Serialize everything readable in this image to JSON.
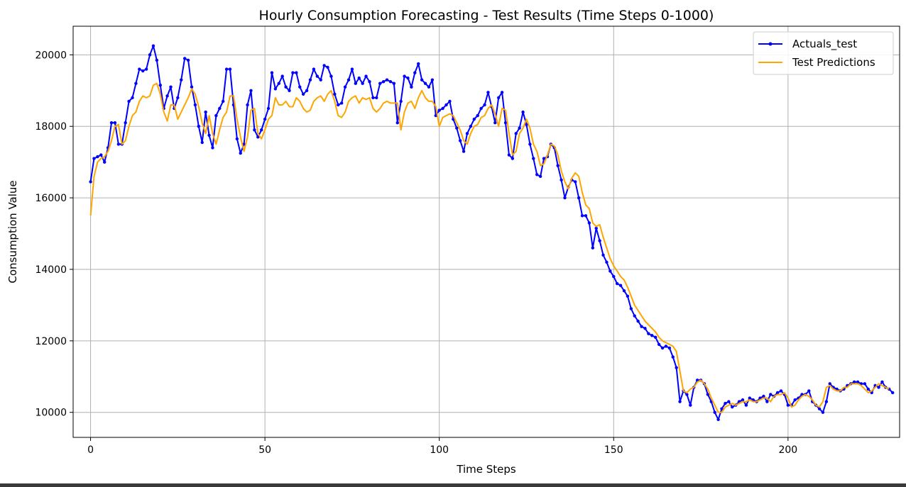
{
  "chart_data": {
    "type": "line",
    "title": "Hourly Consumption Forecasting - Test Results (Time Steps 0-1000)",
    "xlabel": "Time Steps",
    "ylabel": "Consumption Value",
    "xlim": [
      -5,
      232
    ],
    "ylim": [
      9300,
      20800
    ],
    "xticks": [
      0,
      50,
      100,
      150,
      200
    ],
    "yticks": [
      10000,
      12000,
      14000,
      16000,
      18000,
      20000
    ],
    "grid": true,
    "legend_position": "top-right",
    "series": [
      {
        "name": "Actuals_test",
        "color": "#0000ff",
        "marker": "dot",
        "values": [
          16450,
          17100,
          17150,
          17200,
          17000,
          17400,
          18100,
          18100,
          17500,
          17500,
          18100,
          18700,
          18800,
          19200,
          19600,
          19550,
          19600,
          20000,
          20250,
          19850,
          19150,
          18500,
          18850,
          19100,
          18500,
          18800,
          19300,
          19900,
          19850,
          19100,
          18600,
          18000,
          17550,
          18400,
          17750,
          17400,
          18300,
          18500,
          18700,
          19600,
          19600,
          18600,
          17650,
          17250,
          17500,
          18600,
          19000,
          17900,
          17700,
          17900,
          18200,
          18500,
          19500,
          19050,
          19200,
          19400,
          19100,
          19000,
          19500,
          19500,
          19100,
          18900,
          19000,
          19300,
          19600,
          19400,
          19300,
          19700,
          19650,
          19400,
          18900,
          18600,
          18650,
          19100,
          19300,
          19600,
          19200,
          19350,
          19200,
          19400,
          19250,
          18800,
          18800,
          19200,
          19250,
          19300,
          19250,
          19200,
          18100,
          18700,
          19400,
          19350,
          19100,
          19500,
          19750,
          19300,
          19200,
          19100,
          19300,
          18300,
          18450,
          18500,
          18600,
          18700,
          18200,
          17950,
          17600,
          17300,
          17800,
          18000,
          18200,
          18300,
          18500,
          18600,
          18950,
          18550,
          18100,
          18800,
          18950,
          18100,
          17200,
          17100,
          17800,
          17950,
          18400,
          18050,
          17500,
          17100,
          16650,
          16600,
          17100,
          17150,
          17500,
          17400,
          16900,
          16500,
          16000,
          16300,
          16500,
          16450,
          16000,
          15500,
          15500,
          15300,
          14600,
          15150,
          14800,
          14400,
          14200,
          13950,
          13800,
          13600,
          13550,
          13400,
          13250,
          12900,
          12700,
          12550,
          12400,
          12350,
          12200,
          12150,
          12100,
          11900,
          11800,
          11850,
          11800,
          11550,
          11250,
          10300,
          10600,
          10500,
          10200,
          10700,
          10900,
          10900,
          10800,
          10500,
          10300,
          10000,
          9800,
          10100,
          10250,
          10300,
          10150,
          10200,
          10300,
          10350,
          10200,
          10400,
          10350,
          10300,
          10400,
          10450,
          10300,
          10500,
          10450,
          10550,
          10600,
          10500,
          10200,
          10200,
          10350,
          10400,
          10500,
          10500,
          10600,
          10300,
          10200,
          10100,
          10000,
          10300,
          10800,
          10700,
          10650,
          10600,
          10650,
          10750,
          10800,
          10850,
          10850,
          10800,
          10800,
          10650,
          10550,
          10750,
          10700,
          10850,
          10700,
          10650,
          10550
        ]
      },
      {
        "name": "Test Predictions",
        "color": "#ffa500",
        "marker": "none",
        "values": [
          15500,
          16600,
          17000,
          17100,
          17150,
          17300,
          17600,
          18000,
          18050,
          17500,
          17600,
          18000,
          18300,
          18400,
          18700,
          18850,
          18800,
          18850,
          19150,
          19200,
          18900,
          18400,
          18150,
          18600,
          18600,
          18200,
          18400,
          18600,
          18800,
          19050,
          18900,
          18550,
          18100,
          17800,
          18300,
          17800,
          17500,
          17900,
          18250,
          18400,
          18850,
          18850,
          18200,
          17700,
          17300,
          17700,
          18450,
          18500,
          17800,
          17650,
          17900,
          18200,
          18300,
          18800,
          18600,
          18600,
          18700,
          18550,
          18550,
          18800,
          18700,
          18500,
          18400,
          18450,
          18700,
          18800,
          18850,
          18700,
          18900,
          19000,
          18700,
          18300,
          18250,
          18400,
          18700,
          18800,
          18850,
          18650,
          18800,
          18750,
          18800,
          18500,
          18400,
          18500,
          18650,
          18700,
          18650,
          18650,
          18650,
          17900,
          18400,
          18650,
          18700,
          18500,
          18800,
          19000,
          18800,
          18700,
          18700,
          18550,
          18000,
          18250,
          18300,
          18350,
          18300,
          18100,
          17900,
          17600,
          17500,
          17800,
          18000,
          18050,
          18250,
          18300,
          18500,
          18600,
          18350,
          18000,
          18500,
          18450,
          17800,
          17200,
          17300,
          17800,
          17950,
          18200,
          17950,
          17500,
          17300,
          16900,
          16950,
          17200,
          17500,
          17450,
          17200,
          16750,
          16450,
          16250,
          16550,
          16700,
          16600,
          16150,
          15800,
          15700,
          15300,
          15200,
          15250,
          14900,
          14600,
          14300,
          14100,
          13950,
          13800,
          13700,
          13500,
          13250,
          13000,
          12850,
          12700,
          12550,
          12450,
          12350,
          12250,
          12100,
          12000,
          11950,
          11900,
          11850,
          11700,
          11150,
          10600,
          10550,
          10650,
          10700,
          10850,
          10900,
          10800,
          10650,
          10400,
          10200,
          10000,
          10000,
          10150,
          10200,
          10250,
          10200,
          10250,
          10300,
          10300,
          10350,
          10300,
          10300,
          10350,
          10400,
          10400,
          10300,
          10450,
          10500,
          10500,
          10550,
          10400,
          10150,
          10200,
          10350,
          10450,
          10500,
          10450,
          10350,
          10200,
          10150,
          10300,
          10700,
          10750,
          10650,
          10600,
          10600,
          10700,
          10700,
          10800,
          10800,
          10800,
          10750,
          10650,
          10550,
          10600,
          10700,
          10800,
          10750,
          10700,
          10650
        ]
      }
    ]
  }
}
